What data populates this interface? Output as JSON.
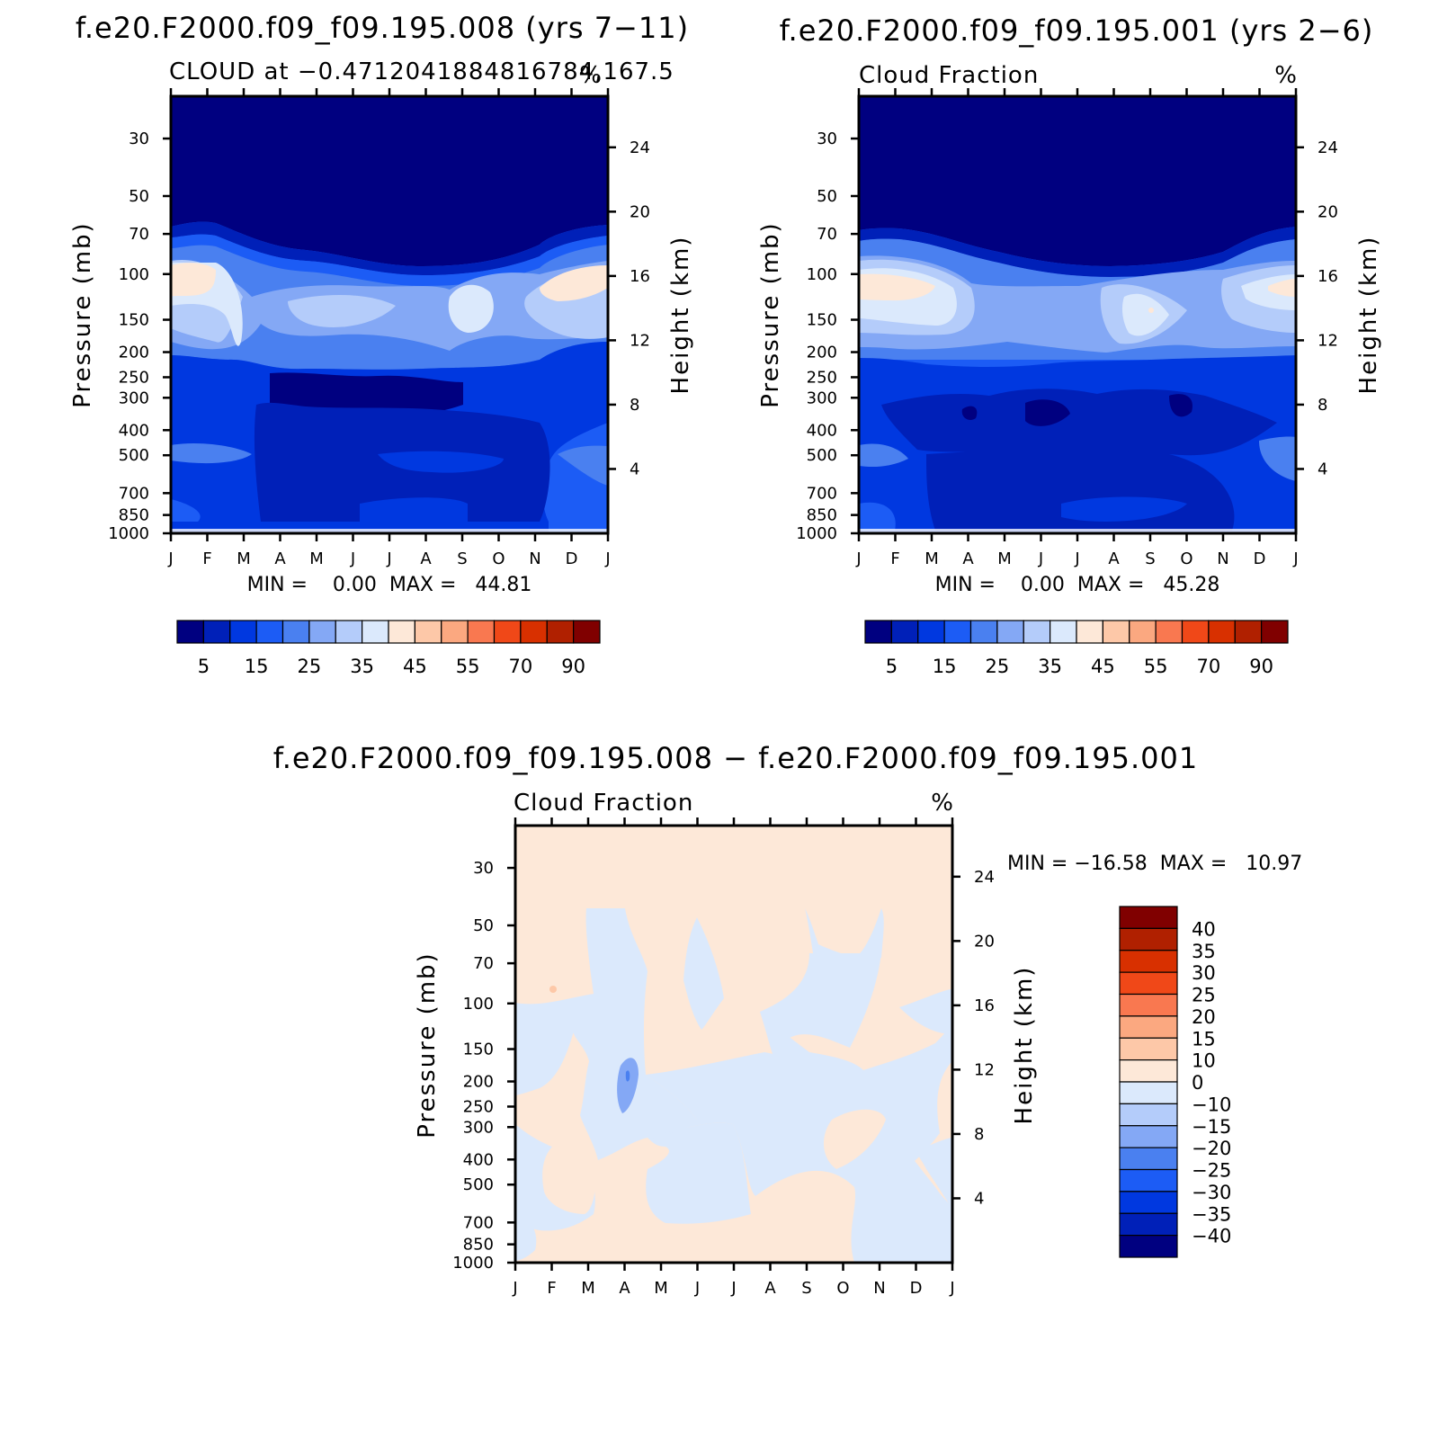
{
  "chart_data": [
    {
      "type": "heatmap",
      "id": "panel-1",
      "title": "f.e20.F2000.f09_f09.195.008 (yrs 7−11)",
      "subtitle_left": "CLOUD at −0.471204188481675 4,167.5",
      "subtitle_left_text": "CLOUD at −0.4712041884816784,167.5",
      "subtitle_right": "%",
      "ylabel_left": "Pressure (mb)",
      "ylabel_right": "Height (km)",
      "x_ticks": [
        "J",
        "F",
        "M",
        "A",
        "M",
        "J",
        "J",
        "A",
        "S",
        "O",
        "N",
        "D",
        "J"
      ],
      "pressure_ticks": [
        30,
        50,
        70,
        100,
        150,
        200,
        250,
        300,
        400,
        500,
        700,
        850,
        1000
      ],
      "height_ticks": [
        24,
        20,
        16,
        12,
        8,
        4
      ],
      "ylim_mb": [
        1000,
        20
      ],
      "stats": "MIN =    0.00  MAX =   44.81",
      "min": 0.0,
      "max": 44.81,
      "colorbar": {
        "orientation": "horizontal",
        "levels": [
          5,
          10,
          15,
          20,
          25,
          30,
          35,
          40,
          45,
          50,
          55,
          60,
          70,
          80,
          90
        ],
        "tick_labels": [
          "5",
          "15",
          "25",
          "35",
          "45",
          "55",
          "70",
          "90"
        ],
        "colors": [
          "#000080",
          "#0020b8",
          "#0038e0",
          "#1c5cf5",
          "#4a80f0",
          "#84a8f5",
          "#b4ccfa",
          "#dbe9fc",
          "#fde8d8",
          "#fdc8a8",
          "#fba880",
          "#f97850",
          "#f04818",
          "#d83000",
          "#b02000",
          "#800000"
        ]
      },
      "grid": false
    },
    {
      "type": "heatmap",
      "id": "panel-2",
      "title": "f.e20.F2000.f09_f09.195.001 (yrs 2−6)",
      "subtitle_left": "Cloud Fraction",
      "subtitle_right": "%",
      "ylabel_left": "Pressure (mb)",
      "ylabel_right": "Height (km)",
      "x_ticks": [
        "J",
        "F",
        "M",
        "A",
        "M",
        "J",
        "J",
        "A",
        "S",
        "O",
        "N",
        "D",
        "J"
      ],
      "pressure_ticks": [
        30,
        50,
        70,
        100,
        150,
        200,
        250,
        300,
        400,
        500,
        700,
        850,
        1000
      ],
      "height_ticks": [
        24,
        20,
        16,
        12,
        8,
        4
      ],
      "stats": "MIN =    0.00  MAX =   45.28",
      "min": 0.0,
      "max": 45.28,
      "colorbar": {
        "orientation": "horizontal",
        "tick_labels": [
          "5",
          "15",
          "25",
          "35",
          "45",
          "55",
          "70",
          "90"
        ]
      },
      "grid": false
    },
    {
      "type": "heatmap",
      "id": "panel-diff",
      "title": "f.e20.F2000.f09_f09.195.008 − f.e20.F2000.f09_f09.195.001",
      "subtitle_left": "Cloud Fraction",
      "subtitle_right": "%",
      "ylabel_left": "Pressure (mb)",
      "ylabel_right": "Height (km)",
      "x_ticks": [
        "J",
        "F",
        "M",
        "A",
        "M",
        "J",
        "J",
        "A",
        "S",
        "O",
        "N",
        "D",
        "J"
      ],
      "pressure_ticks": [
        30,
        50,
        70,
        100,
        150,
        200,
        250,
        300,
        400,
        500,
        700,
        850,
        1000
      ],
      "height_ticks": [
        24,
        20,
        16,
        12,
        8,
        4
      ],
      "stats": "MIN = −16.58  MAX =   10.97",
      "min": -16.58,
      "max": 10.97,
      "colorbar": {
        "orientation": "vertical",
        "tick_labels": [
          "40",
          "35",
          "30",
          "25",
          "20",
          "15",
          "10",
          "0",
          "−10",
          "−15",
          "−20",
          "−25",
          "−30",
          "−35",
          "−40"
        ],
        "colors": [
          "#800000",
          "#b02000",
          "#d83000",
          "#f04818",
          "#f97850",
          "#fba880",
          "#fdc8a8",
          "#fde8d8",
          "#dbe9fc",
          "#b4ccfa",
          "#84a8f5",
          "#4a80f0",
          "#1c5cf5",
          "#0038e0",
          "#0020b8",
          "#000080"
        ]
      },
      "grid": false
    }
  ]
}
